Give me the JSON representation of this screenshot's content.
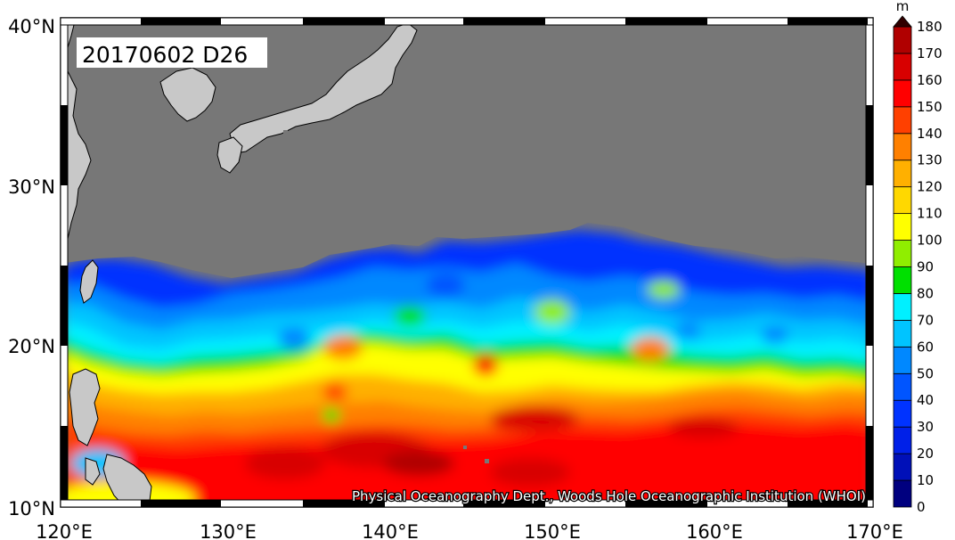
{
  "title": "20170602 D26",
  "credit": "Physical Oceanography Dept., Woods Hole Oceanographic Institution (WHOI)",
  "colorbar": {
    "unit": "m",
    "levels": [
      "0",
      "10",
      "20",
      "30",
      "40",
      "50",
      "60",
      "70",
      "80",
      "90",
      "100",
      "110",
      "120",
      "130",
      "140",
      "150",
      "160",
      "170",
      "180"
    ],
    "colors": [
      "#00007f",
      "#0010b8",
      "#0020e8",
      "#0033ff",
      "#0055ff",
      "#0088ff",
      "#00c4ff",
      "#00f0ff",
      "#00e000",
      "#90ee00",
      "#ffff00",
      "#ffd800",
      "#ffb000",
      "#ff8000",
      "#ff4000",
      "#ff0000",
      "#d80000",
      "#b00000",
      "#700000",
      "#300000"
    ]
  },
  "axes": {
    "x_ticks": [
      "120°E",
      "130°E",
      "140°E",
      "150°E",
      "160°E",
      "170°E"
    ],
    "y_ticks": [
      "40°N",
      "30°N",
      "20°N",
      "10°N"
    ]
  },
  "colors": {
    "land_mask": "#777777",
    "coast_land": "#c8c8c8",
    "frame": "#000000"
  }
}
